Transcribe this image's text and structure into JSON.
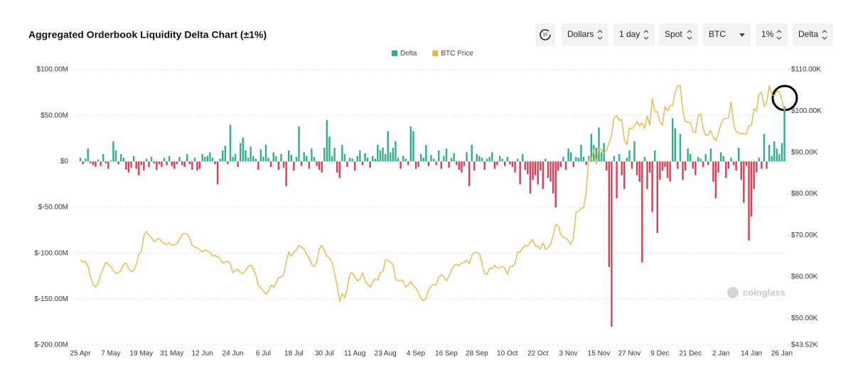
{
  "controls": [
    "Dollars",
    "1 day",
    "Spot",
    "BTC",
    "1%",
    "Delta"
  ],
  "refresh_label": "10",
  "chart_data": {
    "type": "bar",
    "title": "Aggregated Orderbook Liquidity Delta Chart (±1%)",
    "watermark": "coinglass",
    "grid": true,
    "categories": [
      "25 Apr",
      null,
      null,
      null,
      null,
      null,
      null,
      null,
      null,
      null,
      null,
      null,
      "7 May",
      null,
      null,
      null,
      null,
      null,
      null,
      null,
      null,
      null,
      null,
      null,
      "19 May",
      null,
      null,
      null,
      null,
      null,
      null,
      null,
      null,
      null,
      null,
      null,
      "31 May",
      null,
      null,
      null,
      null,
      null,
      null,
      null,
      null,
      null,
      null,
      null,
      "12 Jun",
      null,
      null,
      null,
      null,
      null,
      null,
      null,
      null,
      null,
      null,
      null,
      "24 Jun",
      null,
      null,
      null,
      null,
      null,
      null,
      null,
      null,
      null,
      null,
      null,
      "6 Jul",
      null,
      null,
      null,
      null,
      null,
      null,
      null,
      null,
      null,
      null,
      null,
      "18 Jul",
      null,
      null,
      null,
      null,
      null,
      null,
      null,
      null,
      null,
      null,
      null,
      "30 Jul",
      null,
      null,
      null,
      null,
      null,
      null,
      null,
      null,
      null,
      null,
      null,
      "11 Aug",
      null,
      null,
      null,
      null,
      null,
      null,
      null,
      null,
      null,
      null,
      null,
      "23 Aug",
      null,
      null,
      null,
      null,
      null,
      null,
      null,
      null,
      null,
      null,
      null,
      "4 Sep",
      null,
      null,
      null,
      null,
      null,
      null,
      null,
      null,
      null,
      null,
      null,
      "16 Sep",
      null,
      null,
      null,
      null,
      null,
      null,
      null,
      null,
      null,
      null,
      null,
      "28 Sep",
      null,
      null,
      null,
      null,
      null,
      null,
      null,
      null,
      null,
      null,
      null,
      "10 Oct",
      null,
      null,
      null,
      null,
      null,
      null,
      null,
      null,
      null,
      null,
      null,
      "22 Oct",
      null,
      null,
      null,
      null,
      null,
      null,
      null,
      null,
      null,
      null,
      null,
      "3 Nov",
      null,
      null,
      null,
      null,
      null,
      null,
      null,
      null,
      null,
      null,
      null,
      "15 Nov",
      null,
      null,
      null,
      null,
      null,
      null,
      null,
      null,
      null,
      null,
      null,
      "27 Nov",
      null,
      null,
      null,
      null,
      null,
      null,
      null,
      null,
      null,
      null,
      null,
      "9 Dec",
      null,
      null,
      null,
      null,
      null,
      null,
      null,
      null,
      null,
      null,
      null,
      "21 Dec",
      null,
      null,
      null,
      null,
      null,
      null,
      null,
      null,
      null,
      null,
      null,
      "2 Jan",
      null,
      null,
      null,
      null,
      null,
      null,
      null,
      null,
      null,
      null,
      null,
      "14 Jan",
      null,
      null,
      null,
      null,
      null,
      null,
      null,
      null,
      null,
      null,
      null,
      "26 Jan",
      null
    ],
    "ylim": [
      -200,
      100
    ],
    "yticks": [
      {
        "value": 100,
        "label": "$100.00M"
      },
      {
        "value": 50,
        "label": "$50.00M"
      },
      {
        "value": 0,
        "label": "$0"
      },
      {
        "value": -50,
        "label": "$-50.00M"
      },
      {
        "value": -100,
        "label": "$-100.00M"
      },
      {
        "value": -150,
        "label": "$-150.00M"
      },
      {
        "value": -200,
        "label": "$-200.00M"
      }
    ],
    "y2lim": [
      43.52,
      110
    ],
    "y2ticks": [
      {
        "value": 110,
        "label": "$110.00K"
      },
      {
        "value": 100,
        "label": "$100.00K"
      },
      {
        "value": 90,
        "label": "$90.00K"
      },
      {
        "value": 80,
        "label": "$80.00K"
      },
      {
        "value": 70,
        "label": "$70.00K"
      },
      {
        "value": 60,
        "label": "$60.00K"
      },
      {
        "value": 50,
        "label": "$50.00K"
      },
      {
        "value": 43.52,
        "label": "$43.52K"
      }
    ],
    "series": [
      {
        "name": "Delta",
        "color": "#2fae8b",
        "negative_color": "#e23a4f",
        "values": [
          4,
          -3,
          3,
          14,
          -2,
          -4,
          -6,
          2,
          -5,
          8,
          -2,
          -8,
          1,
          22,
          12,
          -3,
          8,
          4,
          -9,
          -12,
          -7,
          6,
          -8,
          -15,
          -4,
          -10,
          3,
          -6,
          5,
          -2,
          -9,
          -3,
          -6,
          4,
          -4,
          6,
          -5,
          -8,
          -3,
          5,
          -4,
          -6,
          8,
          -3,
          -9,
          4,
          -10,
          -8,
          8,
          5,
          6,
          10,
          4,
          -3,
          -25,
          3,
          12,
          17,
          -3,
          40,
          5,
          8,
          -6,
          20,
          26,
          12,
          4,
          16,
          6,
          3,
          -9,
          13,
          5,
          18,
          4,
          -6,
          10,
          6,
          -9,
          8,
          -7,
          -27,
          12,
          7,
          -10,
          5,
          38,
          -5,
          10,
          6,
          -8,
          14,
          5,
          -5,
          -9,
          -12,
          15,
          45,
          27,
          6,
          15,
          -12,
          -18,
          18,
          8,
          -6,
          4,
          3,
          -10,
          6,
          12,
          -4,
          9,
          4,
          -7,
          6,
          3,
          18,
          12,
          15,
          8,
          33,
          10,
          15,
          22,
          4,
          -8,
          6,
          3,
          -4,
          38,
          33,
          -8,
          -6,
          8,
          4,
          18,
          -5,
          7,
          3,
          -4,
          12,
          -8,
          6,
          14,
          -7,
          4,
          9,
          -4,
          -9,
          -12,
          -5,
          10,
          -27,
          18,
          -10,
          8,
          6,
          4,
          -9,
          3,
          5,
          10,
          -8,
          -4,
          6,
          3,
          -5,
          5,
          -3,
          -6,
          -12,
          3,
          -25,
          8,
          -9,
          -14,
          -35,
          -20,
          -15,
          -25,
          -10,
          -30,
          3,
          -18,
          -22,
          -35,
          -50,
          -10,
          -6,
          5,
          -9,
          14,
          10,
          -6,
          5,
          4,
          18,
          5,
          -4,
          6,
          30,
          18,
          15,
          37,
          10,
          20,
          -10,
          -115,
          -180,
          6,
          -40,
          8,
          -15,
          -30,
          4,
          12,
          -8,
          22,
          -15,
          -22,
          -110,
          5,
          -30,
          -12,
          -55,
          12,
          -78,
          -20,
          -10,
          -6,
          -18,
          -22,
          47,
          36,
          -8,
          30,
          -20,
          -10,
          14,
          8,
          -8,
          -15,
          5,
          3,
          -6,
          8,
          -4,
          14,
          -22,
          -40,
          -12,
          10,
          6,
          -18,
          -8,
          4,
          -4,
          -10,
          15,
          -20,
          -45,
          -5,
          -86,
          -60,
          -30,
          -12,
          4,
          -8,
          30,
          -8,
          18,
          6,
          22,
          14,
          8,
          20,
          60
        ]
      },
      {
        "name": "BTC Price",
        "color": "#e8b84a",
        "type": "line",
        "axis": "y2",
        "values": [
          64.2,
          63.5,
          63.8,
          62.5,
          60,
          58.2,
          57.5,
          58.5,
          60.5,
          62,
          63.5,
          63,
          62.5,
          61.5,
          60.8,
          61,
          61.5,
          63,
          63.3,
          62,
          61.2,
          61.6,
          63,
          65.5,
          66,
          70,
          71,
          70,
          69.5,
          68.5,
          69,
          69.3,
          68.5,
          68,
          67.8,
          68.2,
          67.6,
          67.8,
          68,
          69,
          70.2,
          70.5,
          70.2,
          69.5,
          67.6,
          67.2,
          67,
          66.5,
          66,
          66.5,
          66.2,
          66,
          65,
          65.2,
          64.8,
          64.5,
          63.3,
          63.5,
          63.8,
          63.2,
          61,
          61.5,
          61.8,
          61,
          60.8,
          61.5,
          62.5,
          62.8,
          62,
          60.5,
          58,
          57.3,
          56.5,
          55.8,
          56.5,
          58,
          57.5,
          58.5,
          59.8,
          60,
          60.5,
          63.5,
          66,
          65,
          66,
          66.5,
          67.6,
          67.2,
          66.8,
          65.5,
          64.5,
          63,
          62.5,
          63.5,
          66.8,
          67.6,
          66.3,
          65,
          64.5,
          63.5,
          61,
          58,
          54,
          56,
          55,
          57,
          60.8,
          61,
          60,
          59,
          59.5,
          61,
          59,
          58.2,
          57.5,
          58.8,
          59.5,
          59.2,
          61,
          61.3,
          64,
          64,
          63.5,
          63,
          59.5,
          59,
          59.2,
          59,
          57.5,
          58,
          58.9,
          57.8,
          57.3,
          56.2,
          54.8,
          54.2,
          54.8,
          56.8,
          57.8,
          58.2,
          58,
          60,
          60.5,
          60,
          59,
          60.2,
          61.5,
          62.8,
          63,
          62.7,
          63.3,
          63.5,
          64,
          63.2,
          65.2,
          65.8,
          65.9,
          65.6,
          63.3,
          60.8,
          60.6,
          62.1,
          62,
          62.8,
          62.1,
          62.2,
          62.5,
          62.2,
          60.6,
          62.4,
          62.5,
          63.2,
          66,
          65.9,
          67,
          67.6,
          67.4,
          68.4,
          69,
          67.4,
          67.4,
          66.7,
          68.2,
          66.6,
          67,
          67.9,
          69.9,
          72.7,
          72.3,
          70.2,
          69.5,
          69.3,
          68.7,
          67.8,
          69.4,
          75.6,
          75.9,
          76.5,
          76.7,
          80.4,
          88.7,
          88.2,
          90.6,
          87.3,
          91,
          90.6,
          89.8,
          90.5,
          92.3,
          94.3,
          98.4,
          98.9,
          97.7,
          98,
          93,
          91.9,
          95.9,
          95.7,
          96.4,
          97.5,
          96.4,
          97.2,
          95.8,
          98.8,
          96.6,
          103,
          99.9,
          99.8,
          97.4,
          96.6,
          101.1,
          100,
          101.4,
          101.4,
          104.5,
          106.1,
          106.1,
          100.2,
          97.5,
          97.3,
          97.2,
          95.1,
          94.7,
          98.7,
          99.4,
          95.8,
          94.2,
          94.3,
          95.3,
          93.7,
          92.8,
          94.6,
          96.9,
          98.1,
          98.2,
          98.3,
          102.2,
          96.9,
          95,
          94.7,
          94.5,
          94.5,
          94.5,
          96.5,
          96.6,
          100.5,
          100,
          104.1,
          104.5,
          101.1,
          102,
          106.1,
          104,
          103.7,
          104.8,
          104.7,
          102.6,
          100.2
        ]
      }
    ]
  }
}
